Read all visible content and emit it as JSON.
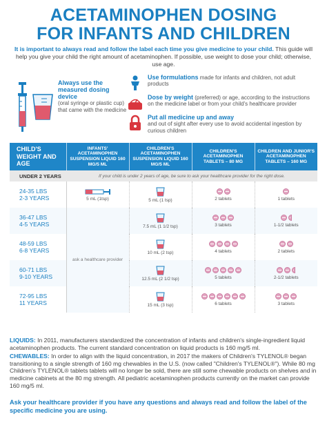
{
  "header": {
    "title_line1": "ACETAMINOPHEN DOSING",
    "title_line2": "FOR INFANTS AND CHILDREN",
    "intro_bold": "It is important to always read and follow the label each time you give medicine to your child.",
    "intro_rest": "This guide will help you give your child the right amount of acetaminophen. If possible, use weight to dose your child; otherwise, use age."
  },
  "tips": {
    "measure_title": "Always use the measured dosing device",
    "measure_text": "(oral syringe or plastic cup) that came with the medicine",
    "items": [
      {
        "title": "Use formulations",
        "text": "made for infants and children, not adult products"
      },
      {
        "title": "Dose by weight",
        "text": "(preferred) or age, according to the instructions on the medicine label or from your child's healthcare provider"
      },
      {
        "title": "Put all medicine up and away",
        "text": "and out of sight after every use to avoid accidental ingestion by curious children"
      }
    ]
  },
  "table": {
    "headers": [
      "CHILD'S WEIGHT AND AGE",
      "INFANTS' ACETAMINOPHEN SUSPENSION LIQUID 160 MG/5 ML",
      "CHILDREN'S ACETAMINOPHEN SUSPENSION LIQUID 160 MG/5 ML",
      "CHILDREN'S ACETAMINOPHEN TABLETS – 80 MG",
      "CHILDREN AND JUNIOR'S ACETAMINOPHEN TABLETS – 160 MG"
    ],
    "under2_label": "UNDER 2 YEARS",
    "under2_msg": "If your child is under 2 years of age, be sure to ask your healthcare provider for the right dose.",
    "ask_provider": "ask a healthcare provider",
    "rows": [
      {
        "lbs": "24-35",
        "lbs_unit": "LBS",
        "age": "2-3",
        "age_unit": "YEARS",
        "infant": "5 mL (1tsp)",
        "liquid": "5 mL (1 tsp)",
        "t80": "2 tablets",
        "t80_n": 2,
        "t160": "1 tablets",
        "t160_n": 1
      },
      {
        "lbs": "36-47",
        "lbs_unit": "LBS",
        "age": "4-5",
        "age_unit": "YEARS",
        "liquid": "7.5 mL (1 1/2 tsp)",
        "t80": "3 tablets",
        "t80_n": 3,
        "t160": "1-1/2 tablets",
        "t160_n": 1.5
      },
      {
        "lbs": "48-59",
        "lbs_unit": "LBS",
        "age": "6-8",
        "age_unit": "YEARS",
        "liquid": "10 mL (2 tsp)",
        "t80": "4 tablets",
        "t80_n": 4,
        "t160": "2 tablets",
        "t160_n": 2
      },
      {
        "lbs": "60-71",
        "lbs_unit": "LBS",
        "age": "9-10",
        "age_unit": "YEARS",
        "liquid": "12.5 mL (2 1/2 tsp)",
        "t80": "5 tablets",
        "t80_n": 5,
        "t160": "2-1/2 tablets",
        "t160_n": 2.5
      },
      {
        "lbs": "72-95",
        "lbs_unit": "LBS",
        "age": "11",
        "age_unit": "YEARS",
        "liquid": "15 mL (3 tsp)",
        "t80": "6 tablets",
        "t80_n": 6,
        "t160": "3 tablets",
        "t160_n": 3
      }
    ]
  },
  "notes": {
    "liquids_label": "LIQUIDS:",
    "liquids_text": "In 2011, manufacturers standardized the concentration of infants and children's single-ingredient liquid acetaminophen products. The current standard concentration on liquid products is 160 mg/5 ml.",
    "chewables_label": "CHEWABLES:",
    "chewables_text": "In order to align with the liquid concentration, in 2017 the makers of Children's TYLENOL® began transitioning to a single strength of 160 mg chewables in the U.S. (now called \"Children's TYLENOL®\"). While 80 mg Children's TYLENOL® tablets tablets will no longer be sold, there are still some chewable products on shelves and in medicine cabinets at the 80 mg strength. All pediatric acetaminophen products currently on the market can provide 160 mg/5 ml.",
    "final": "Ask your healthcare provider if you have any questions and always read and follow the label of the specific medicine you are using."
  },
  "colors": {
    "accent": "#1a7fc1",
    "header_bg": "#1f86c8",
    "pill": "#e3a5c1",
    "alert_red": "#d9363e"
  },
  "icons": [
    "syringe-and-cup-icon",
    "child-icon",
    "scale-icon",
    "lock-icon",
    "measuring-cup-icon",
    "tablet-icon"
  ]
}
